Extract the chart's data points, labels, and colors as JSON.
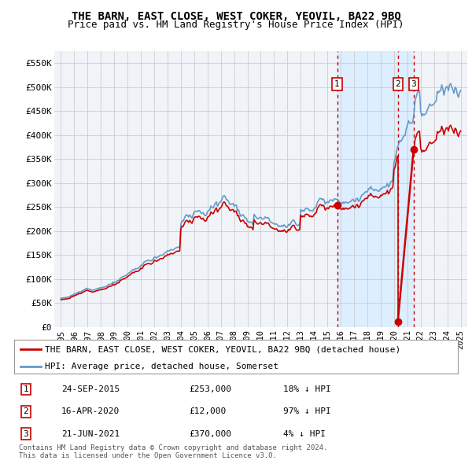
{
  "title": "THE BARN, EAST CLOSE, WEST COKER, YEOVIL, BA22 9BQ",
  "subtitle": "Price paid vs. HM Land Registry's House Price Index (HPI)",
  "legend_property": "THE BARN, EAST CLOSE, WEST COKER, YEOVIL, BA22 9BQ (detached house)",
  "legend_hpi": "HPI: Average price, detached house, Somerset",
  "footer": "Contains HM Land Registry data © Crown copyright and database right 2024.\nThis data is licensed under the Open Government Licence v3.0.",
  "ylim": [
    0,
    575000
  ],
  "yticks": [
    0,
    50000,
    100000,
    150000,
    200000,
    250000,
    300000,
    350000,
    400000,
    450000,
    500000,
    550000
  ],
  "ytick_labels": [
    "£0",
    "£50K",
    "£100K",
    "£150K",
    "£200K",
    "£250K",
    "£300K",
    "£350K",
    "£400K",
    "£450K",
    "£500K",
    "£550K"
  ],
  "xticks": [
    1995,
    1996,
    1997,
    1998,
    1999,
    2000,
    2001,
    2002,
    2003,
    2004,
    2005,
    2006,
    2007,
    2008,
    2009,
    2010,
    2011,
    2012,
    2013,
    2014,
    2015,
    2016,
    2017,
    2018,
    2019,
    2020,
    2021,
    2022,
    2023,
    2024,
    2025
  ],
  "xlim": [
    1994.5,
    2025.5
  ],
  "transactions": [
    {
      "id": 1,
      "year": 2015.73,
      "value": 253000,
      "date": "24-SEP-2015",
      "price": "£253,000",
      "hpi_diff": "18% ↓ HPI"
    },
    {
      "id": 2,
      "year": 2020.29,
      "value": 12000,
      "date": "16-APR-2020",
      "price": "£12,000",
      "hpi_diff": "97% ↓ HPI"
    },
    {
      "id": 3,
      "year": 2021.47,
      "value": 370000,
      "date": "21-JUN-2021",
      "price": "£370,000",
      "hpi_diff": "4% ↓ HPI"
    }
  ],
  "property_color": "#cc0000",
  "hpi_color": "#6699cc",
  "shade_color": "#ddeeff",
  "grid_color": "#cccccc",
  "bg_color": "#ffffff",
  "plot_bg_color": "#f0f4f8",
  "transaction_vline_color": "#cc0000"
}
